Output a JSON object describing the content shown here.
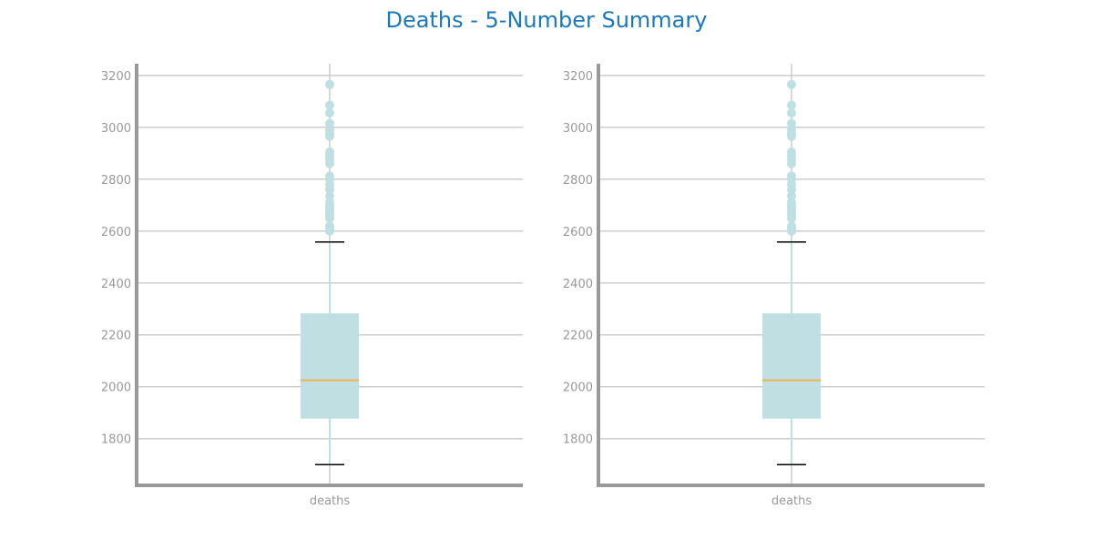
{
  "figure": {
    "title": "Deaths - 5-Number Summary"
  },
  "colors": {
    "title": "#1f77b4",
    "box": "#bfdfe2",
    "median": "#f0b050",
    "cap": "#000000",
    "grid": "#cccccc",
    "axis": "#999999",
    "tick_label": "#999999"
  },
  "chart_data": [
    {
      "type": "box",
      "categories": [
        "deaths"
      ],
      "ylim": [
        1620,
        3245
      ],
      "yticks": [
        1800,
        2000,
        2200,
        2400,
        2600,
        2800,
        3000,
        3200
      ],
      "grid": true,
      "whisker_low": 1700,
      "q1": 1877,
      "median": 2025,
      "q3": 2283,
      "whisker_high": 2558,
      "outliers": [
        2600,
        2612,
        2620,
        2650,
        2662,
        2675,
        2690,
        2700,
        2710,
        2735,
        2760,
        2780,
        2800,
        2812,
        2860,
        2875,
        2890,
        2905,
        2965,
        2975,
        2990,
        3015,
        3055,
        3085,
        3165
      ]
    },
    {
      "type": "box",
      "categories": [
        "deaths"
      ],
      "ylim": [
        1620,
        3245
      ],
      "yticks": [
        1800,
        2000,
        2200,
        2400,
        2600,
        2800,
        3000,
        3200
      ],
      "grid": true,
      "whisker_low": 1700,
      "q1": 1877,
      "median": 2025,
      "q3": 2283,
      "whisker_high": 2558,
      "outliers": [
        2600,
        2612,
        2620,
        2650,
        2662,
        2675,
        2690,
        2700,
        2710,
        2735,
        2760,
        2780,
        2800,
        2812,
        2860,
        2875,
        2890,
        2905,
        2965,
        2975,
        2990,
        3015,
        3055,
        3085,
        3165
      ]
    }
  ]
}
